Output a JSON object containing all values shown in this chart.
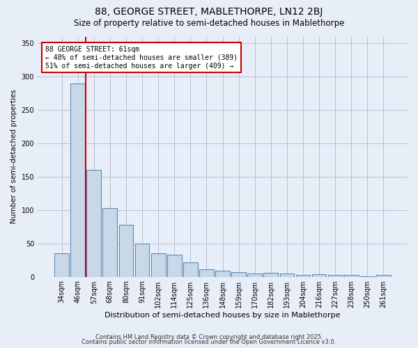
{
  "title1": "88, GEORGE STREET, MABLETHORPE, LN12 2BJ",
  "title2": "Size of property relative to semi-detached houses in Mablethorpe",
  "xlabel": "Distribution of semi-detached houses by size in Mablethorpe",
  "ylabel": "Number of semi-detached properties",
  "categories": [
    "34sqm",
    "46sqm",
    "57sqm",
    "68sqm",
    "80sqm",
    "91sqm",
    "102sqm",
    "114sqm",
    "125sqm",
    "136sqm",
    "148sqm",
    "159sqm",
    "170sqm",
    "182sqm",
    "193sqm",
    "204sqm",
    "216sqm",
    "227sqm",
    "238sqm",
    "250sqm",
    "261sqm"
  ],
  "values": [
    35,
    290,
    160,
    103,
    78,
    50,
    35,
    33,
    21,
    11,
    9,
    7,
    5,
    6,
    5,
    3,
    4,
    3,
    3,
    1,
    3
  ],
  "bar_color": "#c8d8e8",
  "bar_edge_color": "#5b8db8",
  "vline_color": "#cc0000",
  "vline_x": 1.5,
  "annotation_text": "88 GEORGE STREET: 61sqm\n← 48% of semi-detached houses are smaller (389)\n51% of semi-detached houses are larger (409) →",
  "annotation_box_color": "#ffffff",
  "annotation_box_edge": "#cc0000",
  "ylim": [
    0,
    360
  ],
  "yticks": [
    0,
    50,
    100,
    150,
    200,
    250,
    300,
    350
  ],
  "footer1": "Contains HM Land Registry data © Crown copyright and database right 2025.",
  "footer2": "Contains public sector information licensed under the Open Government Licence v3.0.",
  "bg_color": "#e8eef8",
  "plot_bg_color": "#e8eef8",
  "title1_fontsize": 10,
  "title2_fontsize": 8.5,
  "xlabel_fontsize": 8,
  "ylabel_fontsize": 7.5,
  "tick_fontsize": 7,
  "annotation_fontsize": 7,
  "footer_fontsize": 6
}
